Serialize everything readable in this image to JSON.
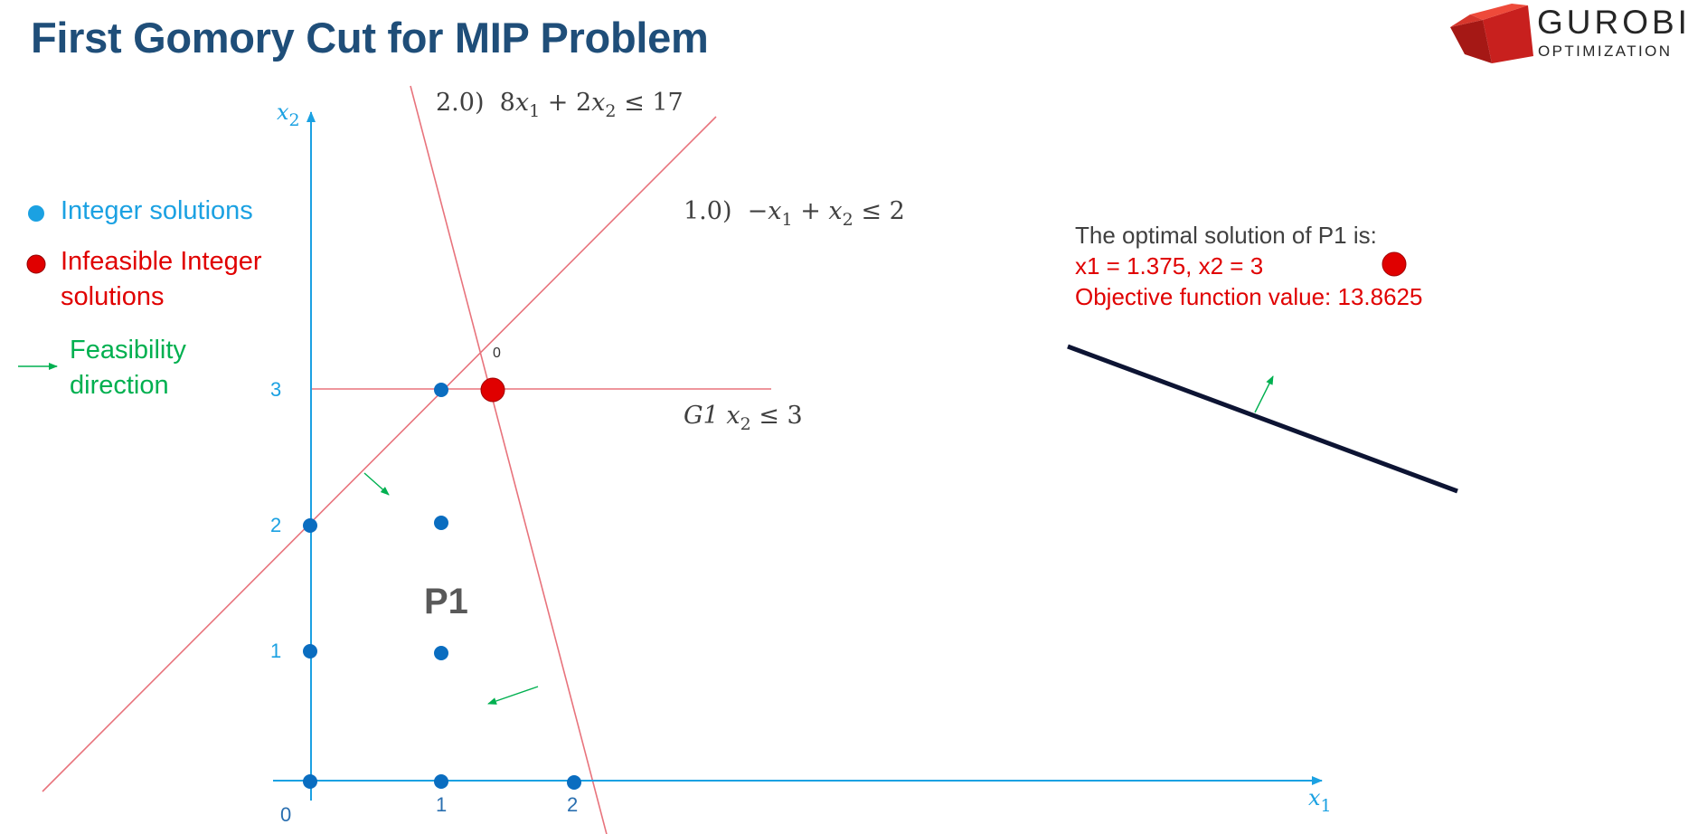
{
  "title": "First Gomory Cut for MIP Problem",
  "logo": {
    "name": "GUROBI",
    "subtitle": "OPTIMIZATION"
  },
  "legend": {
    "integer": "Integer solutions",
    "infeasible_1": "Infeasible Integer",
    "infeasible_2": "solutions",
    "feasibility_1": "Feasibility",
    "feasibility_2": "direction"
  },
  "axes": {
    "x_label": "x",
    "x_sub": "1",
    "y_label": "x",
    "y_sub": "2",
    "origin": "0",
    "x_ticks": [
      "1",
      "2"
    ],
    "y_ticks": [
      "1",
      "2",
      "3"
    ]
  },
  "constraints": {
    "c2": {
      "prefix": "2.0)",
      "coef1": "8",
      "var1": "x",
      "sub1": "1",
      "op": "+",
      "coef2": "2",
      "var2": "x",
      "sub2": "2",
      "rel": "≤",
      "rhs": "17"
    },
    "c1": {
      "prefix": "1.0)",
      "sign": "−",
      "var1": "x",
      "sub1": "1",
      "op": "+",
      "var2": "x",
      "sub2": "2",
      "rel": "≤",
      "rhs": "2"
    },
    "g1": {
      "name": "G1",
      "var": "x",
      "sub": "2",
      "rel": "≤",
      "rhs": "3"
    }
  },
  "node_label": "0",
  "region_label": "P1",
  "optimal": {
    "line1": "The optimal solution of P1 is:",
    "line2": "x1 = 1.375, x2 = 3",
    "line3": "Objective function value: 13.8625"
  },
  "colors": {
    "title": "#1f4e79",
    "axis": "#1ba1e2",
    "integer_point": "#0a6dc0",
    "infeasible": "#e00000",
    "constraint_line": "#e8737c",
    "feasibility_arrow": "#00b050",
    "objective_line": "#0d1433",
    "text_dark": "#404040"
  }
}
